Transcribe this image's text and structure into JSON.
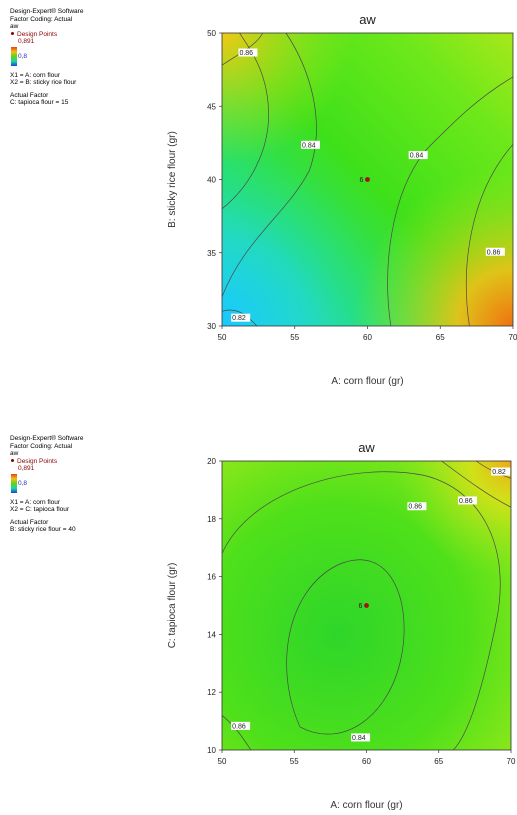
{
  "panels": [
    {
      "info": {
        "software": "Design-Expert® Software",
        "coding": "Factor Coding: Actual",
        "response": "aw",
        "design_points": "Design Points",
        "max": "0,891",
        "min": "0,8",
        "x1": "X1 = A: corn flour",
        "x2": "X2 = B: sticky rice flour",
        "actual_factor_heading": "Actual Factor",
        "actual_factor": "C: tapioca flour = 15"
      }
    },
    {
      "info": {
        "software": "Design-Expert® Software",
        "coding": "Factor Coding: Actual",
        "response": "aw",
        "design_points": "Design Points",
        "max": "0,891",
        "min": "0,8",
        "x1": "X1 = A: corn flour",
        "x2": "X2 = C: tapioca flour",
        "actual_factor_heading": "Actual Factor",
        "actual_factor": "B: sticky rice flour = 40"
      }
    }
  ],
  "chart_data": [
    {
      "type": "heatmap",
      "title": "aw",
      "xlabel": "A: corn flour (gr)",
      "ylabel": "B: sticky rice flour (gr)",
      "xlim": [
        50,
        70
      ],
      "ylim": [
        30,
        50
      ],
      "x_ticks": [
        "50",
        "55",
        "60",
        "65",
        "70"
      ],
      "y_ticks": [
        "30",
        "35",
        "40",
        "45",
        "50"
      ],
      "color_range": [
        0.8,
        0.891
      ],
      "contour_labels": [
        {
          "text": "0.86",
          "x": 51.2,
          "y": 48.6
        },
        {
          "text": "0.84",
          "x": 55.5,
          "y": 42.3
        },
        {
          "text": "0.84",
          "x": 62.9,
          "y": 41.6
        },
        {
          "text": "0.86",
          "x": 68.2,
          "y": 35.0
        },
        {
          "text": "0.82",
          "x": 50.7,
          "y": 30.5
        }
      ],
      "design_points": [
        {
          "x": 60,
          "y": 40,
          "label": "6"
        }
      ],
      "colors": {
        "low": "#1ec8ff",
        "mid": "#3ee01a",
        "high": "#f07010"
      }
    },
    {
      "type": "heatmap",
      "title": "aw",
      "xlabel": "A: corn flour (gr)",
      "ylabel": "C: tapioca flour (gr)",
      "xlim": [
        50,
        70
      ],
      "ylim": [
        10,
        20
      ],
      "x_ticks": [
        "50",
        "55",
        "60",
        "65",
        "70"
      ],
      "y_ticks": [
        "10",
        "12",
        "14",
        "16",
        "18",
        "20"
      ],
      "color_range": [
        0.8,
        0.891
      ],
      "contour_labels": [
        {
          "text": "0.82",
          "x": 68.7,
          "y": 19.6
        },
        {
          "text": "0.86",
          "x": 66.4,
          "y": 18.6
        },
        {
          "text": "0.86",
          "x": 62.9,
          "y": 18.4
        },
        {
          "text": "0.84",
          "x": 59.0,
          "y": 10.4
        },
        {
          "text": "0.86",
          "x": 50.7,
          "y": 10.8
        }
      ],
      "design_points": [
        {
          "x": 60,
          "y": 15,
          "label": "6"
        }
      ],
      "colors": {
        "low": "#2ad42a",
        "mid": "#5fe81a",
        "high": "#e8c018"
      }
    }
  ]
}
